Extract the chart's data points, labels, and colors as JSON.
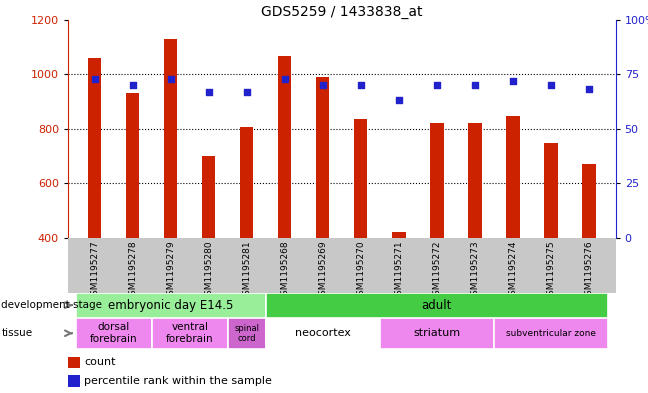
{
  "title": "GDS5259 / 1433838_at",
  "samples": [
    "GSM1195277",
    "GSM1195278",
    "GSM1195279",
    "GSM1195280",
    "GSM1195281",
    "GSM1195268",
    "GSM1195269",
    "GSM1195270",
    "GSM1195271",
    "GSM1195272",
    "GSM1195273",
    "GSM1195274",
    "GSM1195275",
    "GSM1195276"
  ],
  "counts": [
    1058,
    930,
    1130,
    700,
    805,
    1065,
    990,
    835,
    420,
    820,
    820,
    848,
    748,
    672
  ],
  "percentiles": [
    73,
    70,
    73,
    67,
    67,
    73,
    70,
    70,
    63,
    70,
    70,
    72,
    70,
    68
  ],
  "ylim_left": [
    400,
    1200
  ],
  "ylim_right": [
    0,
    100
  ],
  "yticks_left": [
    400,
    600,
    800,
    1000,
    1200
  ],
  "yticks_right": [
    0,
    25,
    50,
    75,
    100
  ],
  "ytick_right_labels": [
    "0",
    "25",
    "50",
    "75",
    "100%"
  ],
  "bar_color": "#cc2200",
  "dot_color": "#2222cc",
  "xticklabel_bg": "#c8c8c8",
  "dev_stage_groups": [
    {
      "label": "embryonic day E14.5",
      "start": 0,
      "end": 5,
      "color": "#99ee99"
    },
    {
      "label": "adult",
      "start": 5,
      "end": 14,
      "color": "#44cc44"
    }
  ],
  "tissue_groups": [
    {
      "label": "dorsal\nforebrain",
      "start": 0,
      "end": 2,
      "color": "#ee88ee"
    },
    {
      "label": "ventral\nforebrain",
      "start": 2,
      "end": 4,
      "color": "#ee88ee"
    },
    {
      "label": "spinal\ncord",
      "start": 4,
      "end": 5,
      "color": "#cc66cc"
    },
    {
      "label": "neocortex",
      "start": 5,
      "end": 8,
      "color": "#ffffff"
    },
    {
      "label": "striatum",
      "start": 8,
      "end": 11,
      "color": "#ee88ee"
    },
    {
      "label": "subventricular zone",
      "start": 11,
      "end": 14,
      "color": "#ee88ee"
    }
  ],
  "legend_count_label": "count",
  "legend_pct_label": "percentile rank within the sample",
  "left_axis_color": "#cc2200",
  "right_axis_color": "#2222cc"
}
